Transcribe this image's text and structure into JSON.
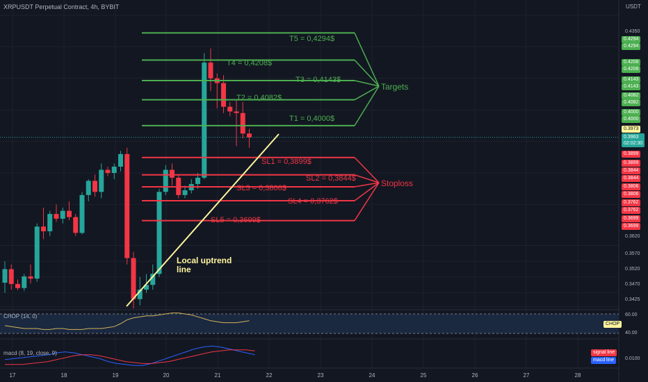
{
  "header": {
    "title": "XRPUSDT Perpetual Contract, 4h, BYBIT",
    "currency": "USDT"
  },
  "colors": {
    "up": "#26a69a",
    "down": "#f23645",
    "target": "#4caf50",
    "stop": "#f23645",
    "trend": "#fff59d"
  },
  "chart_data": {
    "type": "candlestick",
    "x_axis_ticks": [
      "17",
      "18",
      "19",
      "20",
      "21",
      "22",
      "23",
      "24",
      "25",
      "26",
      "27",
      "28"
    ],
    "y_axis_ticks": [
      "0.4350",
      "0.3620",
      "0.3570",
      "0.3520",
      "0.3470",
      "0.3425"
    ],
    "candles": [
      {
        "o": 0.3502,
        "h": 0.357,
        "l": 0.347,
        "c": 0.3545
      },
      {
        "o": 0.3545,
        "h": 0.356,
        "l": 0.348,
        "c": 0.3498
      },
      {
        "o": 0.3498,
        "h": 0.3512,
        "l": 0.3478,
        "c": 0.3485
      },
      {
        "o": 0.3485,
        "h": 0.353,
        "l": 0.3476,
        "c": 0.3522
      },
      {
        "o": 0.3522,
        "h": 0.356,
        "l": 0.35,
        "c": 0.3515
      },
      {
        "o": 0.3515,
        "h": 0.369,
        "l": 0.3505,
        "c": 0.368
      },
      {
        "o": 0.368,
        "h": 0.374,
        "l": 0.364,
        "c": 0.3665
      },
      {
        "o": 0.3665,
        "h": 0.373,
        "l": 0.365,
        "c": 0.372
      },
      {
        "o": 0.372,
        "h": 0.375,
        "l": 0.3695,
        "c": 0.3705
      },
      {
        "o": 0.3705,
        "h": 0.374,
        "l": 0.369,
        "c": 0.373
      },
      {
        "o": 0.373,
        "h": 0.376,
        "l": 0.37,
        "c": 0.371
      },
      {
        "o": 0.371,
        "h": 0.372,
        "l": 0.365,
        "c": 0.366
      },
      {
        "o": 0.366,
        "h": 0.379,
        "l": 0.3655,
        "c": 0.378
      },
      {
        "o": 0.378,
        "h": 0.383,
        "l": 0.376,
        "c": 0.3825
      },
      {
        "o": 0.3825,
        "h": 0.3845,
        "l": 0.3775,
        "c": 0.379
      },
      {
        "o": 0.379,
        "h": 0.388,
        "l": 0.377,
        "c": 0.386
      },
      {
        "o": 0.386,
        "h": 0.387,
        "l": 0.384,
        "c": 0.385
      },
      {
        "o": 0.385,
        "h": 0.388,
        "l": 0.383,
        "c": 0.387
      },
      {
        "o": 0.387,
        "h": 0.392,
        "l": 0.3855,
        "c": 0.391
      },
      {
        "o": 0.391,
        "h": 0.393,
        "l": 0.356,
        "c": 0.358
      },
      {
        "o": 0.358,
        "h": 0.36,
        "l": 0.342,
        "c": 0.345
      },
      {
        "o": 0.345,
        "h": 0.352,
        "l": 0.343,
        "c": 0.348
      },
      {
        "o": 0.348,
        "h": 0.353,
        "l": 0.347,
        "c": 0.3495
      },
      {
        "o": 0.3495,
        "h": 0.356,
        "l": 0.348,
        "c": 0.353
      },
      {
        "o": 0.353,
        "h": 0.38,
        "l": 0.352,
        "c": 0.379
      },
      {
        "o": 0.379,
        "h": 0.3875,
        "l": 0.378,
        "c": 0.386
      },
      {
        "o": 0.386,
        "h": 0.388,
        "l": 0.381,
        "c": 0.3835
      },
      {
        "o": 0.3835,
        "h": 0.3845,
        "l": 0.377,
        "c": 0.378
      },
      {
        "o": 0.378,
        "h": 0.381,
        "l": 0.377,
        "c": 0.3795
      },
      {
        "o": 0.3795,
        "h": 0.383,
        "l": 0.3785,
        "c": 0.3815
      },
      {
        "o": 0.3815,
        "h": 0.385,
        "l": 0.38,
        "c": 0.3835
      },
      {
        "o": 0.3835,
        "h": 0.423,
        "l": 0.383,
        "c": 0.42
      },
      {
        "o": 0.42,
        "h": 0.4245,
        "l": 0.411,
        "c": 0.415
      },
      {
        "o": 0.415,
        "h": 0.4165,
        "l": 0.4055,
        "c": 0.4135
      },
      {
        "o": 0.4135,
        "h": 0.416,
        "l": 0.404,
        "c": 0.406
      },
      {
        "o": 0.406,
        "h": 0.4075,
        "l": 0.403,
        "c": 0.4045
      },
      {
        "o": 0.4045,
        "h": 0.408,
        "l": 0.3935,
        "c": 0.404
      },
      {
        "o": 0.404,
        "h": 0.4075,
        "l": 0.396,
        "c": 0.3975
      },
      {
        "o": 0.3975,
        "h": 0.399,
        "l": 0.393,
        "c": 0.3963
      }
    ],
    "targets": [
      {
        "label": "T5 = 0,4294$",
        "value": 0.4294
      },
      {
        "label": "T4 = 0,4208$",
        "value": 0.4208
      },
      {
        "label": "T3 = 0,4143$",
        "value": 0.4143
      },
      {
        "label": "T2 = 0,4082$",
        "value": 0.4082
      },
      {
        "label": "T1 = 0,4000$",
        "value": 0.4
      }
    ],
    "stoplosses": [
      {
        "label": "SL1 = 0,3899$",
        "value": 0.3899
      },
      {
        "label": "SL2 = 0,3844$",
        "value": 0.3844
      },
      {
        "label": "SL3 = 0,3806$",
        "value": 0.3806
      },
      {
        "label": "SL4 = 0,3762$",
        "value": 0.3762
      },
      {
        "label": "SL5 = 0,3699$",
        "value": 0.3699
      }
    ],
    "current_price": "0.3963",
    "countdown": "02:02:30",
    "marked_price": "0.3973"
  },
  "annotations": {
    "targets": "Targets",
    "stoploss": "Stoploss",
    "uptrend": "Local uptrend\nline"
  },
  "chop": {
    "label": "CHOP (14, 0)",
    "badge": "CHOP",
    "levels": [
      "60.00",
      "40.00"
    ],
    "values": [
      48,
      47,
      46,
      45,
      45,
      45,
      44,
      44,
      45,
      45,
      44,
      44,
      44,
      45,
      45,
      45,
      46,
      47,
      50,
      54,
      56,
      57,
      58,
      58,
      59,
      60,
      61,
      61,
      60,
      59,
      57,
      55,
      53,
      52,
      51,
      51,
      51,
      52,
      53
    ]
  },
  "macd": {
    "label": "macd (8, 19, close, 9)",
    "level": "0.0100",
    "legend_signal": "signal line",
    "legend_macd": "macd line",
    "macd_line": [
      -0.2,
      -0.1,
      0.0,
      0.1,
      0.2,
      0.3,
      0.5,
      0.6,
      0.5,
      0.3,
      0.1,
      -0.1,
      -0.4,
      -0.6,
      -0.7,
      -0.8,
      -0.8,
      -0.6,
      -0.3,
      0.0,
      0.3,
      0.6,
      0.9,
      1.1,
      1.2,
      1.1,
      0.9,
      0.7,
      0.5,
      0.3
    ],
    "signal_line": [
      -0.7,
      -0.7,
      -0.7,
      -0.6,
      -0.5,
      -0.4,
      -0.2,
      0.0,
      0.2,
      0.3,
      0.3,
      0.2,
      0.0,
      -0.2,
      -0.4,
      -0.5,
      -0.6,
      -0.6,
      -0.5,
      -0.4,
      -0.2,
      0.0,
      0.2,
      0.4,
      0.6,
      0.7,
      0.8,
      0.8,
      0.8,
      0.7
    ]
  }
}
